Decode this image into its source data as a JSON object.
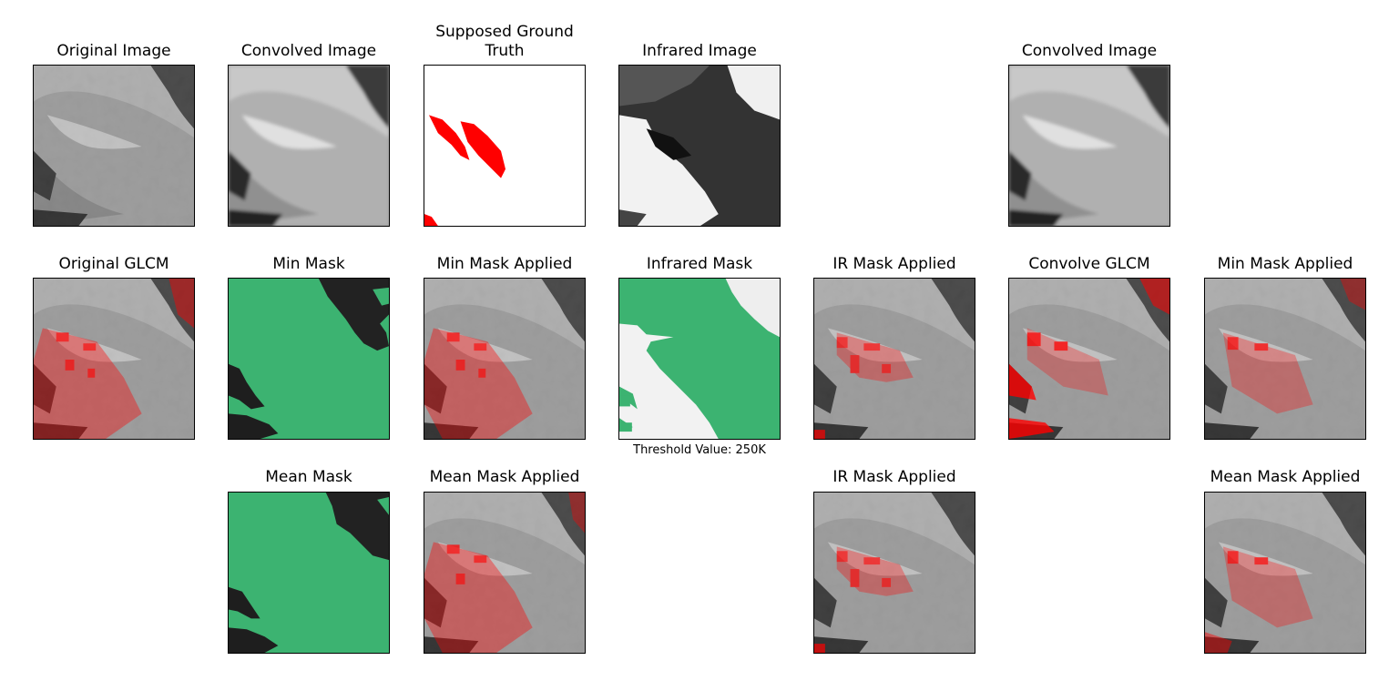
{
  "panels": {
    "r1c1": {
      "title": "Original Image"
    },
    "r1c2": {
      "title": "Convolved Image"
    },
    "r1c3": {
      "title_line1": "Supposed Ground",
      "title_line2": "Truth"
    },
    "r1c4": {
      "title": "Infrared Image"
    },
    "r1c6": {
      "title": "Convolved Image"
    },
    "r2c1": {
      "title": "Original GLCM"
    },
    "r2c2": {
      "title": "Min Mask"
    },
    "r2c3": {
      "title": "Min Mask Applied"
    },
    "r2c4": {
      "title": "Infrared Mask",
      "caption": "Threshold Value: 250K"
    },
    "r2c5": {
      "title": "IR Mask Applied"
    },
    "r2c6": {
      "title": "Convolve GLCM"
    },
    "r2c7": {
      "title": "Min Mask Applied"
    },
    "r3c2": {
      "title": "Mean Mask"
    },
    "r3c3": {
      "title": "Mean Mask Applied"
    },
    "r3c5": {
      "title": "IR Mask Applied"
    },
    "r3c7": {
      "title": "Mean Mask Applied"
    }
  },
  "colors": {
    "mask_green": "#3cb371",
    "highlight_red": "#ff0000",
    "cloud_gray": "#b4b4b4",
    "shadow_dark": "#1e1e1e"
  }
}
